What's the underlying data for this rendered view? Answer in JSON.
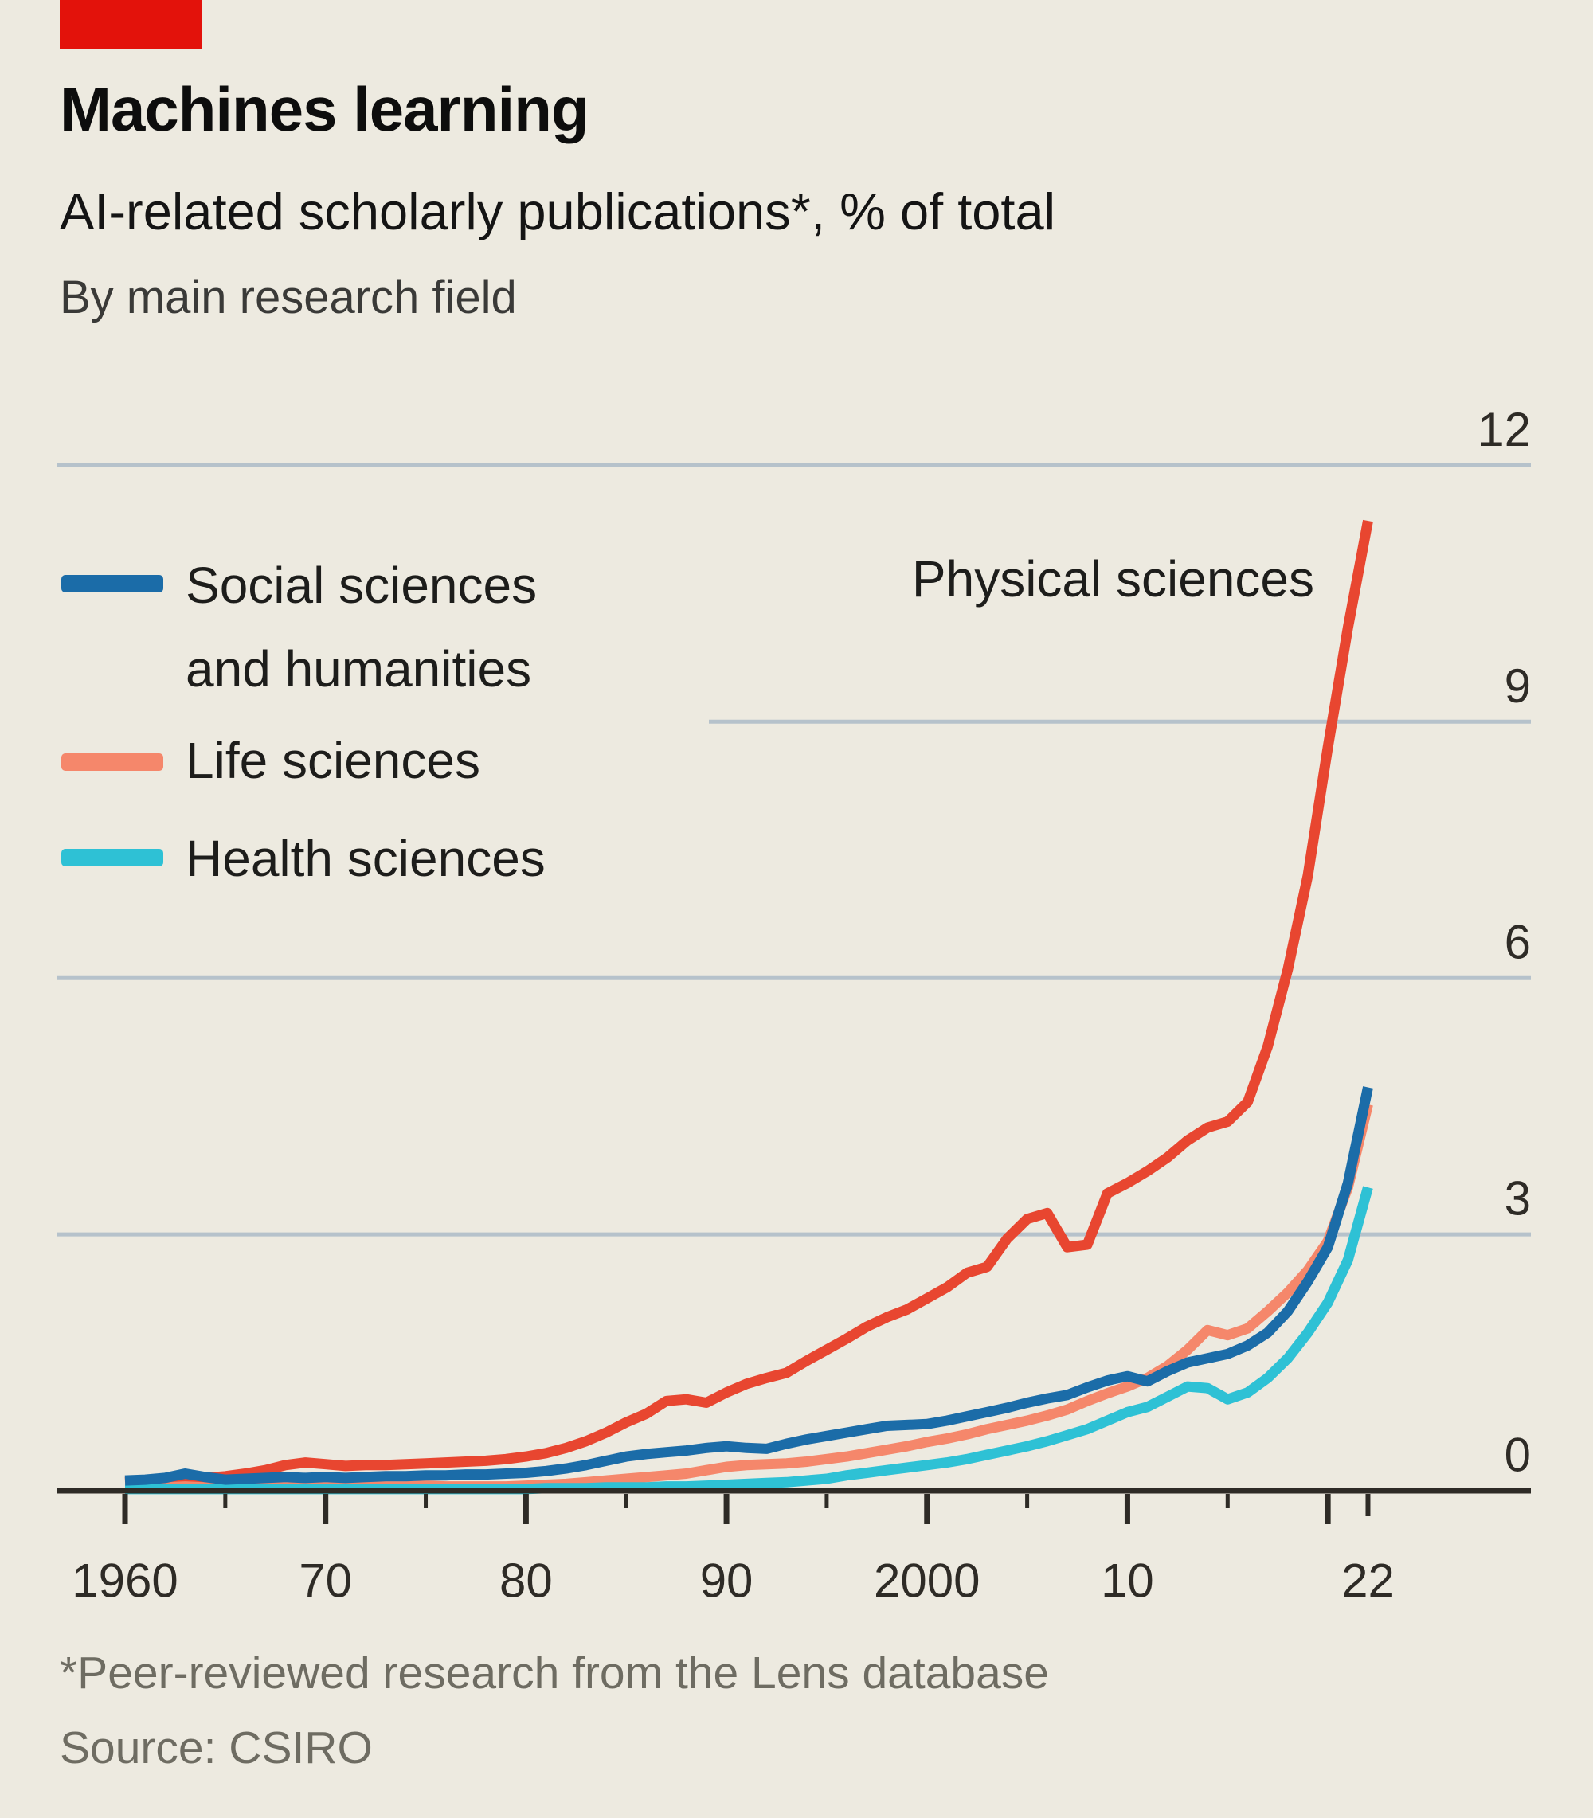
{
  "header": {
    "title": "Machines learning",
    "subtitle": "AI-related scholarly publications*, % of total",
    "byline": "By main research field"
  },
  "accent_bar_color": "#e3120b",
  "legend": {
    "social": {
      "label": "Social sciences\nand humanities",
      "color": "#1b6ca8"
    },
    "life": {
      "label": "Life sciences",
      "color": "#f5876b"
    },
    "health": {
      "label": "Health sciences",
      "color": "#2ec1d5"
    }
  },
  "annotation": {
    "physical_label": "Physical sciences"
  },
  "footnotes": {
    "note": "*Peer-reviewed research from the Lens database",
    "source": "Source: CSIRO"
  },
  "colors": {
    "background": "#edeae0",
    "gridline": "#b6c2cb",
    "axis": "#2e2b26",
    "tick_label": "#2e2b26"
  },
  "chart_data": {
    "type": "line",
    "title": "AI-related scholarly publications, % of total, by main research field",
    "xlabel": "",
    "ylabel": "% of total",
    "ylim": [
      0,
      12
    ],
    "yticks": [
      0,
      3,
      6,
      9,
      12
    ],
    "grid": "horizontal",
    "legend_position": "upper-left",
    "x_start": 1960,
    "x_end": 2022,
    "x_ticks_major": [
      1960,
      1970,
      1980,
      1990,
      2000,
      2010,
      2020
    ],
    "x_ticks_minor": [
      1965,
      1975,
      1985,
      1995,
      2005,
      2015
    ],
    "x_tick_final": 2022,
    "x_tick_labels": [
      {
        "year": 1960,
        "label": "1960"
      },
      {
        "year": 1970,
        "label": "70"
      },
      {
        "year": 1980,
        "label": "80"
      },
      {
        "year": 1990,
        "label": "90"
      },
      {
        "year": 2000,
        "label": "2000"
      },
      {
        "year": 2010,
        "label": "10"
      },
      {
        "year": 2022,
        "label": "22"
      }
    ],
    "series": [
      {
        "name": "Physical sciences",
        "color": "#e84630",
        "values": [
          0.1,
          0.11,
          0.12,
          0.14,
          0.15,
          0.17,
          0.2,
          0.24,
          0.3,
          0.33,
          0.31,
          0.29,
          0.3,
          0.3,
          0.31,
          0.32,
          0.33,
          0.34,
          0.35,
          0.37,
          0.4,
          0.44,
          0.5,
          0.58,
          0.68,
          0.8,
          0.9,
          1.05,
          1.07,
          1.03,
          1.15,
          1.25,
          1.32,
          1.38,
          1.52,
          1.65,
          1.78,
          1.92,
          2.03,
          2.12,
          2.25,
          2.38,
          2.55,
          2.62,
          2.95,
          3.18,
          3.25,
          2.85,
          2.88,
          3.48,
          3.6,
          3.74,
          3.9,
          4.1,
          4.25,
          4.32,
          4.55,
          5.2,
          6.1,
          7.2,
          8.7,
          10.1,
          11.35
        ]
      },
      {
        "name": "Life sciences",
        "color": "#f5876b",
        "values": [
          0.04,
          0.04,
          0.04,
          0.05,
          0.04,
          0.03,
          0.03,
          0.04,
          0.04,
          0.04,
          0.04,
          0.04,
          0.05,
          0.05,
          0.05,
          0.06,
          0.05,
          0.05,
          0.05,
          0.05,
          0.06,
          0.07,
          0.08,
          0.1,
          0.12,
          0.14,
          0.16,
          0.18,
          0.2,
          0.24,
          0.28,
          0.3,
          0.31,
          0.32,
          0.34,
          0.37,
          0.4,
          0.44,
          0.48,
          0.52,
          0.57,
          0.61,
          0.66,
          0.72,
          0.77,
          0.82,
          0.88,
          0.95,
          1.05,
          1.14,
          1.22,
          1.32,
          1.46,
          1.65,
          1.88,
          1.82,
          1.9,
          2.1,
          2.32,
          2.58,
          2.92,
          3.55,
          4.52
        ]
      },
      {
        "name": "Health sciences",
        "color": "#2ec1d5",
        "values": [
          0.02,
          0.02,
          0.02,
          0.02,
          0.02,
          0.02,
          0.02,
          0.02,
          0.02,
          0.02,
          0.02,
          0.02,
          0.02,
          0.02,
          0.02,
          0.02,
          0.02,
          0.02,
          0.02,
          0.02,
          0.02,
          0.03,
          0.03,
          0.03,
          0.04,
          0.04,
          0.04,
          0.05,
          0.05,
          0.06,
          0.07,
          0.08,
          0.09,
          0.1,
          0.12,
          0.14,
          0.18,
          0.21,
          0.24,
          0.27,
          0.3,
          0.33,
          0.37,
          0.42,
          0.47,
          0.52,
          0.58,
          0.65,
          0.72,
          0.82,
          0.92,
          0.98,
          1.1,
          1.22,
          1.2,
          1.07,
          1.15,
          1.32,
          1.55,
          1.85,
          2.2,
          2.7,
          3.55
        ]
      },
      {
        "name": "Social sciences and humanities",
        "color": "#1b6ca8",
        "values": [
          0.12,
          0.13,
          0.15,
          0.2,
          0.16,
          0.13,
          0.14,
          0.15,
          0.16,
          0.15,
          0.16,
          0.15,
          0.16,
          0.17,
          0.17,
          0.18,
          0.18,
          0.19,
          0.19,
          0.2,
          0.21,
          0.23,
          0.26,
          0.3,
          0.35,
          0.4,
          0.43,
          0.45,
          0.47,
          0.5,
          0.52,
          0.5,
          0.49,
          0.55,
          0.6,
          0.64,
          0.68,
          0.72,
          0.76,
          0.77,
          0.78,
          0.82,
          0.87,
          0.92,
          0.97,
          1.03,
          1.08,
          1.12,
          1.21,
          1.29,
          1.34,
          1.28,
          1.4,
          1.5,
          1.55,
          1.6,
          1.7,
          1.85,
          2.1,
          2.45,
          2.85,
          3.6,
          4.72
        ]
      }
    ]
  }
}
